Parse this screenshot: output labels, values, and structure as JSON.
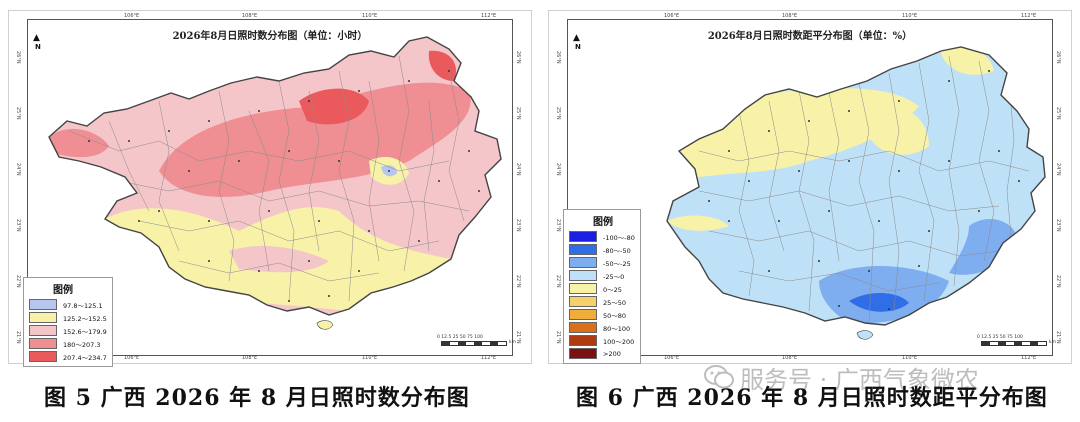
{
  "maps": [
    {
      "title": "2026年8月日照时数分布图（单位：小时）",
      "lon_ticks": [
        "106°E",
        "108°E",
        "110°E",
        "112°E"
      ],
      "lat_ticks": [
        "26°N",
        "25°N",
        "24°N",
        "23°N",
        "22°N",
        "21°N"
      ],
      "north": "N",
      "legend": {
        "title": "图例",
        "items": [
          {
            "label": "97.8～125.1",
            "color": "#b7c6ee"
          },
          {
            "label": "125.2～152.5",
            "color": "#f7f2a8"
          },
          {
            "label": "152.6～179.9",
            "color": "#f4c6c9"
          },
          {
            "label": "180～207.3",
            "color": "#ef8f94"
          },
          {
            "label": "207.4～234.7",
            "color": "#ea5a5d"
          }
        ]
      },
      "scale_text": "0 12.5 25    50    75    100",
      "scale_unit": "km",
      "caption": "图 5 广西 2026 年 8 月日照时数分布图"
    },
    {
      "title": "2026年8月日照时数距平分布图（单位：%）",
      "lon_ticks": [
        "106°E",
        "108°E",
        "110°E",
        "112°E"
      ],
      "lat_ticks": [
        "26°N",
        "25°N",
        "24°N",
        "23°N",
        "22°N",
        "21°N"
      ],
      "north": "N",
      "legend": {
        "title": "图例",
        "items": [
          {
            "label": "-100～-80",
            "color": "#1a1ee0"
          },
          {
            "label": "-80～-50",
            "color": "#2f6ee6"
          },
          {
            "label": "-50～-25",
            "color": "#7eaef0"
          },
          {
            "label": "-25～0",
            "color": "#bfe1f7"
          },
          {
            "label": "0～25",
            "color": "#f7f2a8"
          },
          {
            "label": "25～50",
            "color": "#f5d16b"
          },
          {
            "label": "50～80",
            "color": "#efae3a"
          },
          {
            "label": "80～100",
            "color": "#d9701e"
          },
          {
            "label": "100～200",
            "color": "#b03a12"
          },
          {
            "label": ">200",
            "color": "#7a1010"
          }
        ]
      },
      "scale_text": "0 12.5 25    50    75    100",
      "scale_unit": "km",
      "caption": "图 6 广西 2026 年 8 月日照时数距平分布图"
    }
  ],
  "watermark": "服务号 · 广西气象微农",
  "colors": {
    "outline": "#444444",
    "county_line": "#8a8a8a"
  }
}
